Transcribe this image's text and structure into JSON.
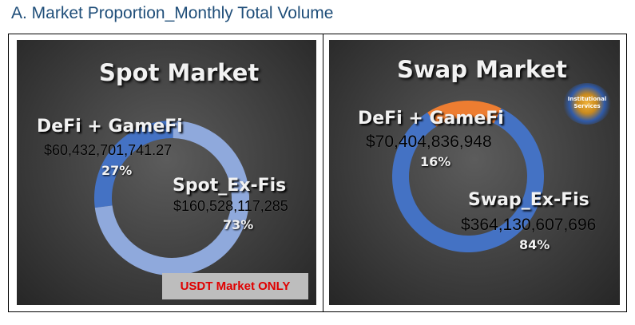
{
  "heading": "A. Market Proportion_Monthly Total Volume",
  "note": "USDT Market ONLY",
  "logo_text": {
    "line1": "Institutional",
    "line2": "Services"
  },
  "chart_data": [
    {
      "type": "pie",
      "title": "Spot Market",
      "donut": true,
      "series": [
        {
          "name": "DeFi + GameFi",
          "value": 60432701741.27,
          "value_text": "$60,432,701,741.27",
          "percent": 27,
          "percent_text": "27%",
          "color": "#4472c4"
        },
        {
          "name": "Spot_Ex-Fis",
          "value": 160528117285,
          "value_text": "$160,528,117,285",
          "percent": 73,
          "percent_text": "73%",
          "color": "#8fa9dc"
        }
      ]
    },
    {
      "type": "pie",
      "title": "Swap Market",
      "donut": true,
      "series": [
        {
          "name": "DeFi + GameFi",
          "value": 70404836948,
          "value_text": "$70,404,836,948",
          "percent": 16,
          "percent_text": "16%",
          "color": "#ed7d31"
        },
        {
          "name": "Swap_Ex-Fis",
          "value": 364130607696,
          "value_text": "$364,130,607,696",
          "percent": 84,
          "percent_text": "84%",
          "color": "#4472c4"
        }
      ]
    }
  ]
}
